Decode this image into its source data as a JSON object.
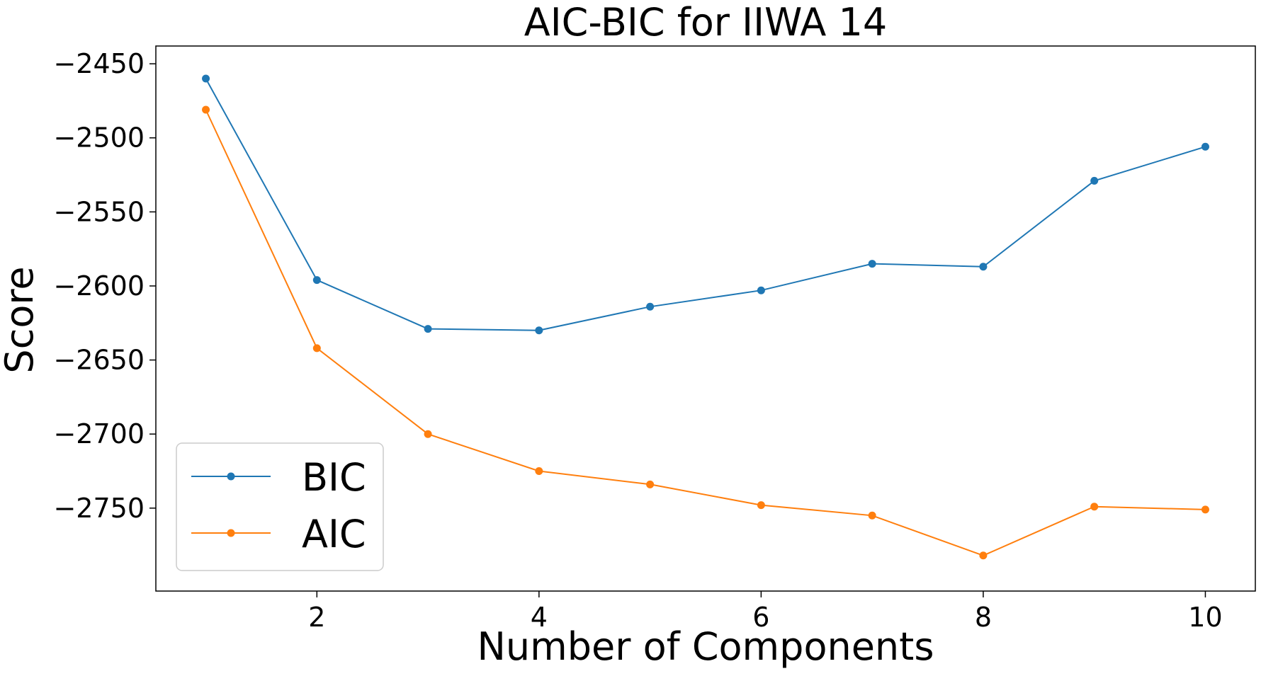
{
  "chart_data": {
    "type": "line",
    "title": "AIC-BIC for IIWA 14",
    "xlabel": "Number of Components",
    "ylabel": "Score",
    "xlim": [
      0.55,
      10.45
    ],
    "ylim": [
      -2806,
      -2438
    ],
    "x_ticks": [
      2,
      4,
      6,
      8,
      10
    ],
    "y_ticks": [
      -2450,
      -2500,
      -2550,
      -2600,
      -2650,
      -2700,
      -2750
    ],
    "grid": false,
    "legend": "lower-left",
    "x": [
      1,
      2,
      3,
      4,
      5,
      6,
      7,
      8,
      9,
      10
    ],
    "series": [
      {
        "name": "BIC",
        "color": "#1f77b4",
        "values": [
          -2460,
          -2596,
          -2629,
          -2630,
          -2614,
          -2603,
          -2585,
          -2587,
          -2529,
          -2506
        ]
      },
      {
        "name": "AIC",
        "color": "#ff7f0e",
        "values": [
          -2481,
          -2642,
          -2700,
          -2725,
          -2734,
          -2748,
          -2755,
          -2782,
          -2749,
          -2751
        ]
      }
    ]
  }
}
